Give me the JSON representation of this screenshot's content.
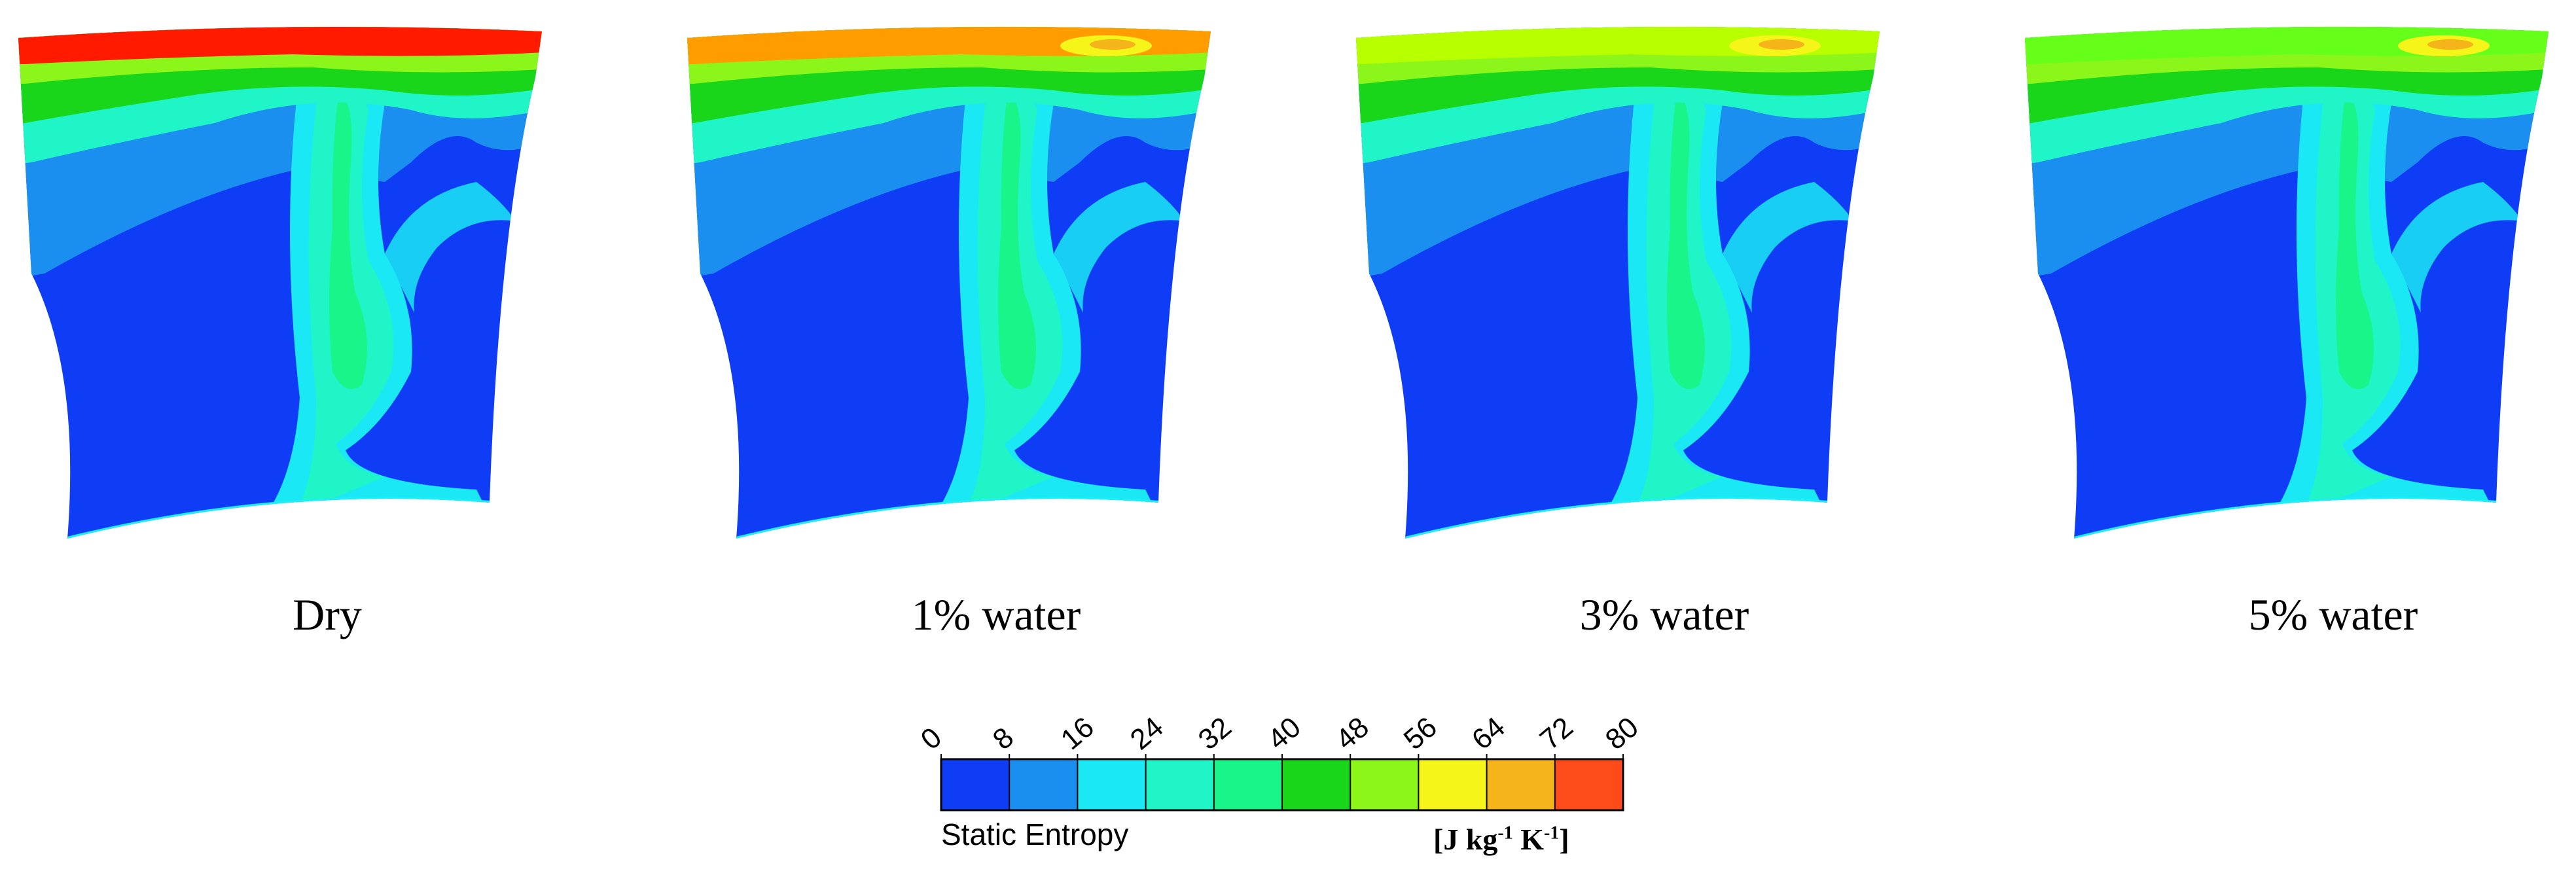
{
  "figure": {
    "panels": [
      {
        "caption": "Dry",
        "tip_color": "#ff1a00",
        "tip_hot": false
      },
      {
        "caption": "1% water",
        "tip_color": "#ff9d00",
        "tip_hot": true
      },
      {
        "caption": "3% water",
        "tip_color": "#b8ff00",
        "tip_hot": true
      },
      {
        "caption": "5% water",
        "tip_color": "#66ff1a",
        "tip_hot": true
      }
    ]
  },
  "colorbar": {
    "label": "Static Entropy",
    "units_main": "[J kg",
    "units_exp1": "-1",
    "units_mid": " K",
    "units_exp2": "-1",
    "units_end": "]",
    "ticks": [
      "0",
      "8",
      "16",
      "24",
      "32",
      "40",
      "48",
      "56",
      "64",
      "72",
      "80"
    ],
    "colors": [
      "#0f3df5",
      "#1a8ff0",
      "#1ae8f5",
      "#1ff5c7",
      "#1af58a",
      "#1ad61a",
      "#8cf51a",
      "#f5f51a",
      "#f5b51a",
      "#ff4a1a"
    ]
  }
}
